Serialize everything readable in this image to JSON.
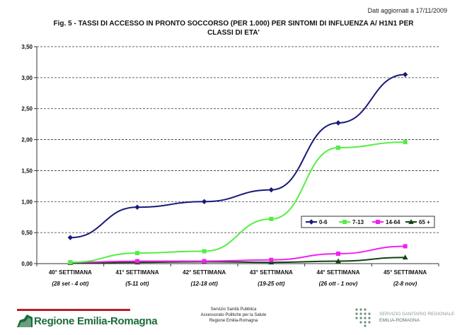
{
  "header": {
    "date_note": "Dati aggiornati a 17/11/2009",
    "title_line1": "Fig. 5 - TASSI DI ACCESSO IN PRONTO SOCCORSO (PER 1.000) PER SINTOMI DI INFLUENZA A/ H1N1 PER",
    "title_line2": "CLASSI DI ETA'"
  },
  "chart_data": {
    "type": "line",
    "categories": [
      "40° SETTIMANA",
      "41° SETTIMANA",
      "42° SETTIMANA",
      "43° SETTIMANA",
      "44° SETTIMANA",
      "45° SETTIMANA"
    ],
    "category_sublabels": [
      "(28 set - 4 ott)",
      "(5-11 ott)",
      "(12-18 ott)",
      "(19-25 ott)",
      "(26 ott - 1 nov)",
      "(2-8 nov)"
    ],
    "y_ticks": [
      "0,00",
      "0,50",
      "1,00",
      "1,50",
      "2,00",
      "2,50",
      "3,00",
      "3,50"
    ],
    "ylim": [
      0,
      3.5
    ],
    "grid": "horizontal dashed",
    "legend_position": "right, inside plot",
    "series": [
      {
        "name": "0-6",
        "color": "#1a1a7a",
        "marker": "diamond",
        "values": [
          0.42,
          0.91,
          1.0,
          1.19,
          2.27,
          3.05
        ]
      },
      {
        "name": "7-13",
        "color": "#55ee44",
        "marker": "square",
        "values": [
          0.02,
          0.17,
          0.2,
          0.72,
          1.87,
          1.96
        ]
      },
      {
        "name": "14-64",
        "color": "#ee22ee",
        "marker": "square",
        "values": [
          0.02,
          0.04,
          0.04,
          0.06,
          0.16,
          0.28
        ]
      },
      {
        "name": "65 +",
        "color": "#114411",
        "marker": "triangle",
        "values": [
          0.01,
          0.02,
          0.03,
          0.02,
          0.04,
          0.1
        ]
      }
    ]
  },
  "footer": {
    "left_logo": "Regione Emilia-Romagna",
    "center_line1": "Servizio Sanità Pubblica",
    "center_line2": "Assessorato Politiche per la Salute",
    "center_line3": "Regione Emilia-Romagna",
    "right_line1": "SERVIZIO SANITARIO REGIONALE",
    "right_line2": "EMILIA-ROMAGNA"
  }
}
